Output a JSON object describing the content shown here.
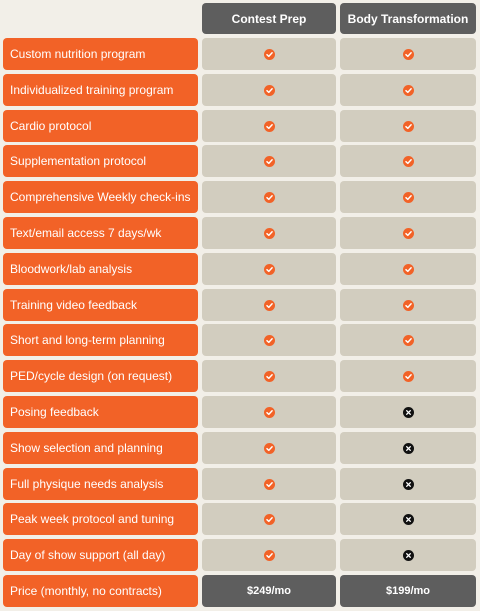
{
  "plans": [
    {
      "name": "Contest Prep",
      "price": "$249/mo"
    },
    {
      "name": "Body Transformation",
      "price": "$199/mo"
    }
  ],
  "colors": {
    "accent": "#f26227",
    "header_bg": "#5e5e5e",
    "cell_bg": "#d2cdbf",
    "not_included": "#111111"
  },
  "icons": {
    "included": "check-circle-icon",
    "not_included": "x-circle-icon"
  },
  "features": [
    {
      "label": "Custom nutrition program",
      "included": [
        true,
        true
      ]
    },
    {
      "label": "Individualized training program",
      "included": [
        true,
        true
      ]
    },
    {
      "label": "Cardio protocol",
      "included": [
        true,
        true
      ]
    },
    {
      "label": "Supplementation protocol",
      "included": [
        true,
        true
      ]
    },
    {
      "label": "Comprehensive Weekly check-ins",
      "included": [
        true,
        true
      ]
    },
    {
      "label": "Text/email access 7 days/wk",
      "included": [
        true,
        true
      ]
    },
    {
      "label": "Bloodwork/lab analysis",
      "included": [
        true,
        true
      ]
    },
    {
      "label": "Training video feedback",
      "included": [
        true,
        true
      ]
    },
    {
      "label": "Short and long-term planning",
      "included": [
        true,
        true
      ]
    },
    {
      "label": "PED/cycle design (on request)",
      "included": [
        true,
        true
      ]
    },
    {
      "label": "Posing feedback",
      "included": [
        true,
        false
      ]
    },
    {
      "label": "Show selection and planning",
      "included": [
        true,
        false
      ]
    },
    {
      "label": "Full physique needs analysis",
      "included": [
        true,
        false
      ]
    },
    {
      "label": "Peak week protocol and tuning",
      "included": [
        true,
        false
      ]
    },
    {
      "label": "Day of show support (all day)",
      "included": [
        true,
        false
      ]
    }
  ],
  "price_row_label": "Price (monthly, no contracts)"
}
